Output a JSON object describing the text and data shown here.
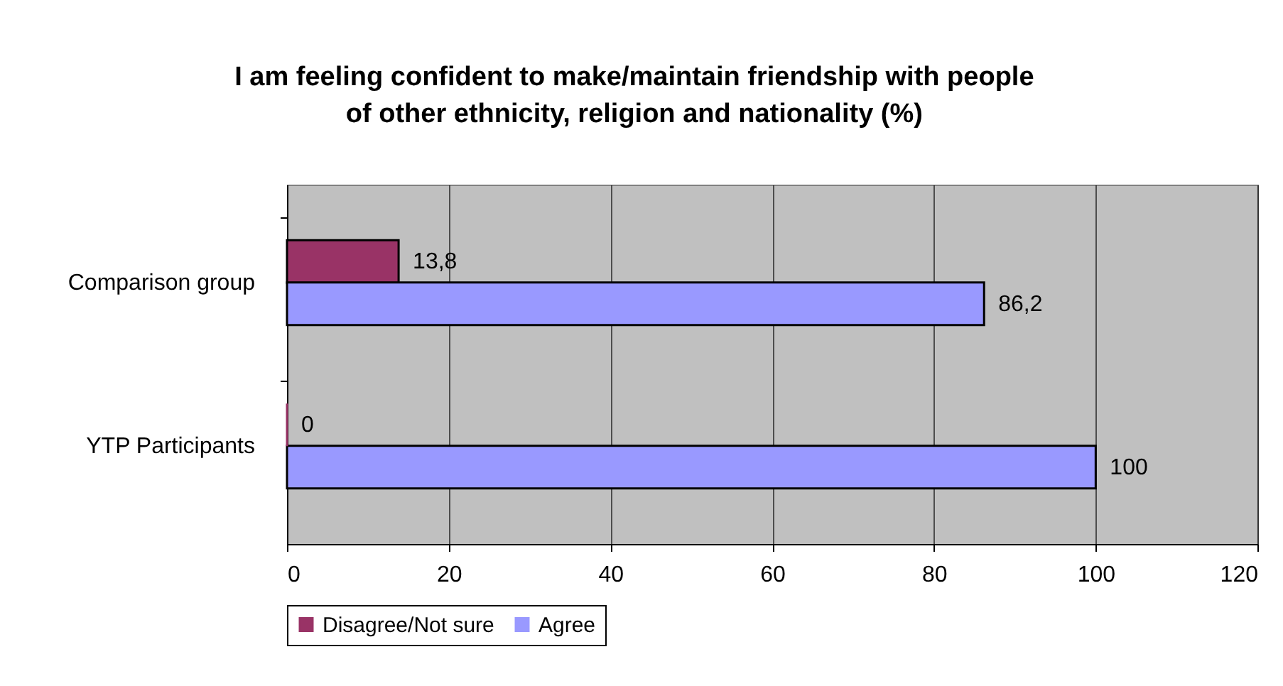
{
  "chart_data": {
    "type": "bar",
    "orientation": "horizontal",
    "title": "I am feeling confident to make/maintain friendship with people of other ethnicity, religion and nationality (%)",
    "categories": [
      "Comparison group",
      "YTP Participants"
    ],
    "series": [
      {
        "name": "Disagree/Not sure",
        "color": "#993366",
        "values": [
          13.8,
          0
        ],
        "value_labels": [
          "13,8",
          "0"
        ]
      },
      {
        "name": "Agree",
        "color": "#9999ff",
        "values": [
          86.2,
          100
        ],
        "value_labels": [
          "86,2",
          "100"
        ]
      }
    ],
    "xlim": [
      0,
      120
    ],
    "xticks": [
      0,
      20,
      40,
      60,
      80,
      100,
      120
    ],
    "grid": "x",
    "legend": "bottom"
  }
}
